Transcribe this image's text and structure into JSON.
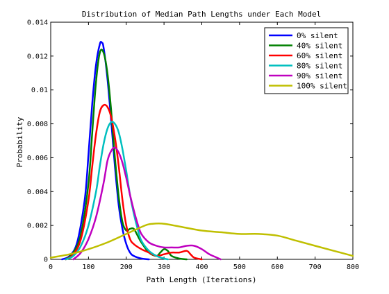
{
  "chart_data": {
    "type": "line",
    "title": "Distribution of Median Path Lengths under Each Model",
    "xlabel": "Path Length (Iterations)",
    "ylabel": "Probability",
    "xlim": [
      0,
      800
    ],
    "ylim": [
      0,
      0.014
    ],
    "xticks": [
      0,
      100,
      200,
      300,
      400,
      500,
      600,
      700,
      800
    ],
    "yticks": [
      0,
      0.002,
      0.004,
      0.006,
      0.008,
      0.01,
      0.012,
      0.014
    ],
    "xtick_labels": [
      "0",
      "100",
      "200",
      "300",
      "400",
      "500",
      "600",
      "700",
      "800"
    ],
    "ytick_labels": [
      "0",
      "0.002",
      "0.004",
      "0.006",
      "0.008",
      "0.01",
      "0.012",
      "0.014"
    ],
    "grid": false,
    "legend_position": "top-right",
    "series": [
      {
        "name": "0% silent",
        "color": "#0000ff",
        "points": [
          [
            30,
            0
          ],
          [
            50,
            0.0002
          ],
          [
            70,
            0.001
          ],
          [
            90,
            0.0035
          ],
          [
            100,
            0.0062
          ],
          [
            110,
            0.0092
          ],
          [
            120,
            0.0115
          ],
          [
            130,
            0.0127
          ],
          [
            135,
            0.0128
          ],
          [
            140,
            0.0125
          ],
          [
            150,
            0.0107
          ],
          [
            160,
            0.0082
          ],
          [
            170,
            0.0055
          ],
          [
            180,
            0.0032
          ],
          [
            190,
            0.0018
          ],
          [
            200,
            0.0009
          ],
          [
            210,
            0.0004
          ],
          [
            220,
            0.0002
          ],
          [
            240,
            5e-05
          ],
          [
            260,
            0
          ]
        ]
      },
      {
        "name": "40% silent",
        "color": "#008000",
        "points": [
          [
            40,
            0
          ],
          [
            60,
            0.0004
          ],
          [
            80,
            0.0015
          ],
          [
            100,
            0.0045
          ],
          [
            110,
            0.0075
          ],
          [
            120,
            0.0105
          ],
          [
            130,
            0.0122
          ],
          [
            140,
            0.0122
          ],
          [
            150,
            0.011
          ],
          [
            160,
            0.0088
          ],
          [
            170,
            0.006
          ],
          [
            180,
            0.0037
          ],
          [
            190,
            0.0022
          ],
          [
            200,
            0.0017
          ],
          [
            210,
            0.0018
          ],
          [
            220,
            0.0018
          ],
          [
            230,
            0.0014
          ],
          [
            240,
            0.001
          ],
          [
            260,
            0.0004
          ],
          [
            280,
            0.0002
          ],
          [
            290,
            0.0004
          ],
          [
            300,
            0.0006
          ],
          [
            310,
            0.0005
          ],
          [
            320,
            0.0002
          ],
          [
            340,
            5e-05
          ],
          [
            360,
            0
          ]
        ]
      },
      {
        "name": "60% silent",
        "color": "#ff0000",
        "points": [
          [
            40,
            0
          ],
          [
            60,
            0.0003
          ],
          [
            80,
            0.0012
          ],
          [
            100,
            0.0035
          ],
          [
            110,
            0.0055
          ],
          [
            120,
            0.0074
          ],
          [
            130,
            0.0087
          ],
          [
            140,
            0.0091
          ],
          [
            150,
            0.009
          ],
          [
            160,
            0.0084
          ],
          [
            170,
            0.0072
          ],
          [
            180,
            0.0055
          ],
          [
            190,
            0.0035
          ],
          [
            200,
            0.002
          ],
          [
            210,
            0.0012
          ],
          [
            220,
            0.0009
          ],
          [
            240,
            0.0006
          ],
          [
            260,
            0.0004
          ],
          [
            280,
            0.0002
          ],
          [
            300,
            0.0003
          ],
          [
            320,
            0.0004
          ],
          [
            340,
            0.0004
          ],
          [
            360,
            0.0005
          ],
          [
            370,
            0.0003
          ],
          [
            380,
            0.0001
          ],
          [
            400,
            0
          ]
        ]
      },
      {
        "name": "80% silent",
        "color": "#00bfbf",
        "points": [
          [
            40,
            0
          ],
          [
            60,
            0.0002
          ],
          [
            80,
            0.0008
          ],
          [
            100,
            0.002
          ],
          [
            120,
            0.004
          ],
          [
            130,
            0.0055
          ],
          [
            140,
            0.0068
          ],
          [
            150,
            0.0077
          ],
          [
            160,
            0.0081
          ],
          [
            170,
            0.008
          ],
          [
            180,
            0.0075
          ],
          [
            190,
            0.0065
          ],
          [
            200,
            0.0052
          ],
          [
            210,
            0.0038
          ],
          [
            220,
            0.0027
          ],
          [
            230,
            0.0018
          ],
          [
            240,
            0.0011
          ],
          [
            260,
            0.0005
          ],
          [
            280,
            0.0002
          ],
          [
            300,
            5e-05
          ],
          [
            310,
            0
          ]
        ]
      },
      {
        "name": "90% silent",
        "color": "#bf00bf",
        "points": [
          [
            60,
            0
          ],
          [
            80,
            0.0004
          ],
          [
            100,
            0.0012
          ],
          [
            120,
            0.0025
          ],
          [
            140,
            0.0045
          ],
          [
            150,
            0.0058
          ],
          [
            160,
            0.0064
          ],
          [
            170,
            0.0066
          ],
          [
            180,
            0.0063
          ],
          [
            190,
            0.0057
          ],
          [
            200,
            0.0048
          ],
          [
            210,
            0.0038
          ],
          [
            220,
            0.0029
          ],
          [
            230,
            0.0021
          ],
          [
            240,
            0.0015
          ],
          [
            260,
            0.001
          ],
          [
            280,
            0.0008
          ],
          [
            300,
            0.0007
          ],
          [
            320,
            0.0007
          ],
          [
            340,
            0.0007
          ],
          [
            360,
            0.0008
          ],
          [
            380,
            0.0008
          ],
          [
            400,
            0.0006
          ],
          [
            420,
            0.0003
          ],
          [
            440,
            0.0001
          ],
          [
            450,
            0
          ]
        ]
      },
      {
        "name": "100% silent",
        "color": "#bfbf00",
        "points": [
          [
            0,
            0.0001
          ],
          [
            50,
            0.0003
          ],
          [
            100,
            0.0006
          ],
          [
            150,
            0.001
          ],
          [
            200,
            0.0015
          ],
          [
            250,
            0.002
          ],
          [
            270,
            0.0021
          ],
          [
            300,
            0.0021
          ],
          [
            350,
            0.0019
          ],
          [
            400,
            0.0017
          ],
          [
            450,
            0.0016
          ],
          [
            500,
            0.0015
          ],
          [
            550,
            0.0015
          ],
          [
            600,
            0.0014
          ],
          [
            650,
            0.0011
          ],
          [
            700,
            0.0008
          ],
          [
            750,
            0.0005
          ],
          [
            800,
            0.0002
          ]
        ]
      }
    ]
  }
}
